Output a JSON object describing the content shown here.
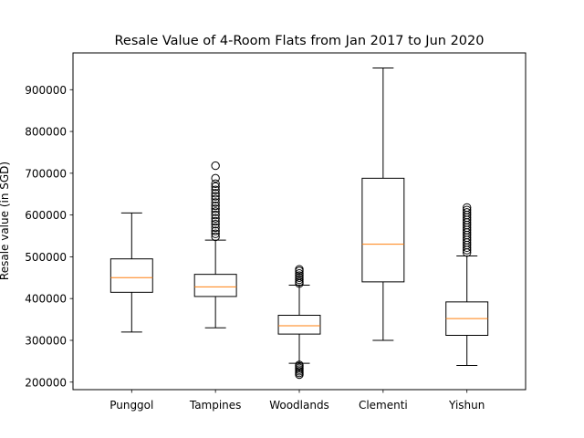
{
  "chart_data": {
    "type": "boxplot",
    "title": "Resale Value of 4-Room Flats from Jan 2017 to Jun 2020",
    "xlabel": "",
    "ylabel": "Resale value (in SGD)",
    "ylim": [
      182000,
      988000
    ],
    "yticks": [
      200000,
      300000,
      400000,
      500000,
      600000,
      700000,
      800000,
      900000
    ],
    "ytick_labels": [
      "200000",
      "300000",
      "400000",
      "500000",
      "600000",
      "700000",
      "800000",
      "900000"
    ],
    "grid": false,
    "colors": {
      "box": "#000000",
      "median": "#ff7f0e",
      "flier": "#000000"
    },
    "categories": [
      "Punggol",
      "Tampines",
      "Woodlands",
      "Clementi",
      "Yishun"
    ],
    "boxes": [
      {
        "name": "Punggol",
        "whislo": 320000,
        "q1": 415000,
        "med": 450000,
        "q3": 495000,
        "whishi": 605000,
        "fliers": []
      },
      {
        "name": "Tampines",
        "whislo": 330000,
        "q1": 405000,
        "med": 428000,
        "q3": 458000,
        "whishi": 540000,
        "fliers": [
          548000,
          555000,
          562000,
          570000,
          578000,
          585000,
          592000,
          600000,
          608000,
          615000,
          622000,
          630000,
          638000,
          645000,
          652000,
          660000,
          668000,
          675000,
          688000,
          718000
        ]
      },
      {
        "name": "Woodlands",
        "whislo": 245000,
        "q1": 315000,
        "med": 335000,
        "q3": 360000,
        "whishi": 432000,
        "fliers": [
          218000,
          222000,
          226000,
          230000,
          234000,
          238000,
          241000,
          436000,
          440000,
          445000,
          450000,
          455000,
          460000,
          466000,
          470000
        ]
      },
      {
        "name": "Clementi",
        "whislo": 300000,
        "q1": 440000,
        "med": 530000,
        "q3": 688000,
        "whishi": 952000,
        "fliers": []
      },
      {
        "name": "Yishun",
        "whislo": 240000,
        "q1": 312000,
        "med": 352000,
        "q3": 392000,
        "whishi": 502000,
        "fliers": [
          510000,
          516000,
          522000,
          528000,
          534000,
          540000,
          546000,
          552000,
          558000,
          564000,
          570000,
          576000,
          582000,
          588000,
          594000,
          600000,
          606000,
          612000,
          618000
        ]
      }
    ]
  }
}
